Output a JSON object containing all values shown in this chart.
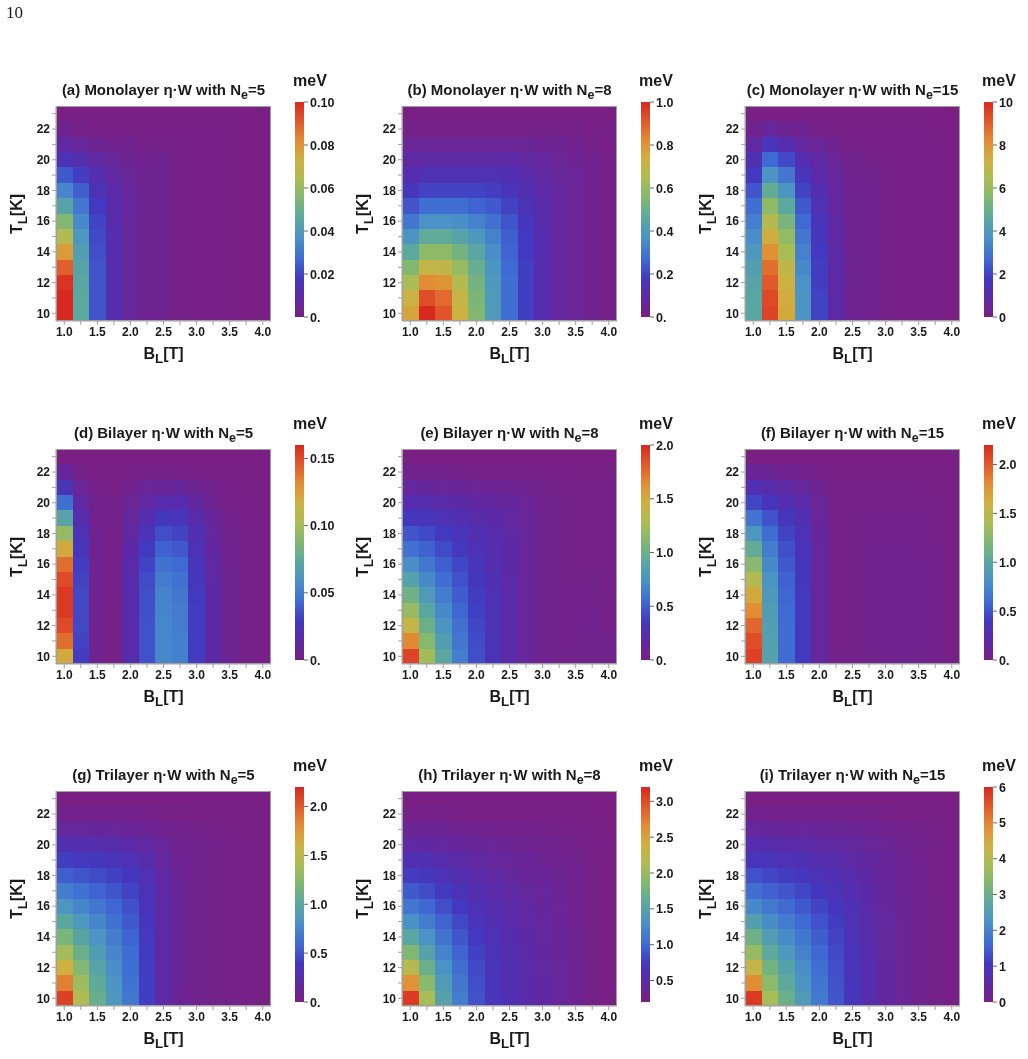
{
  "chart_data": [
    {
      "type": "heatmap",
      "title": "(a) Monolayer η·W with N$_{e}$=5",
      "xlabel": "B$_{L}$[T]",
      "ylabel": "T$_{L}$[K]",
      "clabel": "meV",
      "annotations": [
        "10"
      ],
      "categories": [
        "1.0",
        null,
        "1.5",
        null,
        "2.0",
        null,
        "2.5",
        null,
        "3.0",
        null,
        "3.5",
        null,
        "4.0"
      ],
      "y_categories": [
        null,
        "22",
        null,
        "20",
        null,
        "18",
        null,
        "16",
        null,
        "14",
        null,
        "12",
        null,
        "10"
      ],
      "clim": [
        0,
        0.1
      ],
      "cticks": [
        {
          "value": 0,
          "label": "0."
        },
        0.02,
        0.04,
        0.06,
        0.08,
        {
          "value": 0.1,
          "label": "0.10"
        }
      ],
      "cells": [
        [
          0,
          0,
          0,
          0,
          0,
          0,
          0,
          0,
          0,
          0,
          0,
          0,
          0
        ],
        [
          0.003,
          0.002,
          0.001,
          0.001,
          0.001,
          0.001,
          0.001,
          0.001,
          0.001,
          0.001,
          0.001,
          0,
          0
        ],
        [
          0.008,
          0.006,
          0.004,
          0.003,
          0.003,
          0.002,
          0.002,
          0.002,
          0.001,
          0.001,
          0.001,
          0,
          0
        ],
        [
          0.015,
          0.012,
          0.008,
          0.006,
          0.004,
          0.003,
          0.003,
          0.002,
          0.001,
          0.001,
          0.001,
          0,
          0
        ],
        [
          0.024,
          0.019,
          0.012,
          0.008,
          0.005,
          0.004,
          0.003,
          0.002,
          0.001,
          0.001,
          0.001,
          0,
          0
        ],
        [
          0.034,
          0.025,
          0.015,
          0.01,
          0.006,
          0.004,
          0.003,
          0.002,
          0.001,
          0.001,
          0.001,
          0,
          0
        ],
        [
          0.044,
          0.03,
          0.018,
          0.011,
          0.006,
          0.004,
          0.003,
          0.002,
          0.001,
          0.001,
          0.001,
          0,
          0
        ],
        [
          0.055,
          0.035,
          0.02,
          0.011,
          0.006,
          0.004,
          0.003,
          0.002,
          0.001,
          0.001,
          0.001,
          0,
          0
        ],
        [
          0.066,
          0.039,
          0.021,
          0.012,
          0.006,
          0.004,
          0.003,
          0.002,
          0.001,
          0.001,
          0.001,
          0,
          0
        ],
        [
          0.078,
          0.042,
          0.022,
          0.012,
          0.006,
          0.004,
          0.003,
          0.002,
          0.001,
          0.001,
          0.001,
          0,
          0
        ],
        [
          0.09,
          0.044,
          0.023,
          0.012,
          0.006,
          0.004,
          0.003,
          0.002,
          0.001,
          0.001,
          0.001,
          0,
          0
        ],
        [
          0.098,
          0.045,
          0.023,
          0.012,
          0.006,
          0.004,
          0.003,
          0.002,
          0.001,
          0.001,
          0.001,
          0,
          0
        ],
        [
          0.1,
          0.046,
          0.023,
          0.012,
          0.006,
          0.004,
          0.003,
          0.002,
          0.001,
          0.001,
          0.001,
          0,
          0
        ],
        [
          0.1,
          0.046,
          0.023,
          0.012,
          0.006,
          0.004,
          0.003,
          0.002,
          0.001,
          0.001,
          0.001,
          0,
          0
        ]
      ]
    },
    {
      "type": "heatmap",
      "title": "(b) Monolayer η·W with N$_{e}$=8",
      "xlabel": "B$_{L}$[T]",
      "ylabel": "T$_{L}$[K]",
      "clabel": "meV",
      "categories": [
        "1.0",
        null,
        "1.5",
        null,
        "2.0",
        null,
        "2.5",
        null,
        "3.0",
        null,
        "3.5",
        null,
        "4.0"
      ],
      "y_categories": [
        null,
        "22",
        null,
        "20",
        null,
        "18",
        null,
        "16",
        null,
        "14",
        null,
        "12",
        null,
        "10"
      ],
      "clim": [
        0,
        1
      ],
      "cticks": [
        {
          "value": 0,
          "label": "0."
        },
        0.2,
        0.4,
        0.6,
        0.8,
        {
          "value": 1,
          "label": "1.0"
        }
      ],
      "cells": [
        [
          0,
          0,
          0,
          0,
          0,
          0,
          0,
          0,
          0,
          0,
          0,
          0,
          0
        ],
        [
          0.02,
          0.02,
          0.02,
          0.02,
          0.02,
          0.02,
          0.02,
          0.02,
          0.02,
          0.02,
          0.02,
          0.01,
          0.01
        ],
        [
          0.05,
          0.05,
          0.05,
          0.05,
          0.05,
          0.05,
          0.05,
          0.05,
          0.04,
          0.04,
          0.03,
          0.02,
          0.01
        ],
        [
          0.08,
          0.09,
          0.09,
          0.09,
          0.09,
          0.09,
          0.09,
          0.08,
          0.07,
          0.05,
          0.04,
          0.03,
          0.02
        ],
        [
          0.12,
          0.14,
          0.14,
          0.14,
          0.14,
          0.14,
          0.13,
          0.11,
          0.08,
          0.06,
          0.05,
          0.03,
          0.02
        ],
        [
          0.17,
          0.2,
          0.2,
          0.2,
          0.2,
          0.19,
          0.16,
          0.13,
          0.1,
          0.07,
          0.05,
          0.03,
          0.02
        ],
        [
          0.23,
          0.28,
          0.28,
          0.28,
          0.26,
          0.24,
          0.2,
          0.15,
          0.11,
          0.07,
          0.05,
          0.03,
          0.02
        ],
        [
          0.3,
          0.37,
          0.37,
          0.36,
          0.33,
          0.29,
          0.23,
          0.17,
          0.11,
          0.07,
          0.05,
          0.03,
          0.02
        ],
        [
          0.38,
          0.47,
          0.47,
          0.44,
          0.39,
          0.33,
          0.25,
          0.18,
          0.12,
          0.07,
          0.05,
          0.03,
          0.02
        ],
        [
          0.46,
          0.58,
          0.58,
          0.52,
          0.45,
          0.36,
          0.26,
          0.18,
          0.12,
          0.07,
          0.05,
          0.03,
          0.02
        ],
        [
          0.55,
          0.7,
          0.69,
          0.6,
          0.49,
          0.38,
          0.27,
          0.19,
          0.12,
          0.07,
          0.05,
          0.03,
          0.02
        ],
        [
          0.64,
          0.82,
          0.8,
          0.66,
          0.52,
          0.39,
          0.28,
          0.19,
          0.12,
          0.07,
          0.05,
          0.03,
          0.02
        ],
        [
          0.72,
          0.93,
          0.88,
          0.7,
          0.54,
          0.4,
          0.28,
          0.19,
          0.12,
          0.07,
          0.05,
          0.03,
          0.02
        ],
        [
          0.76,
          1.0,
          0.92,
          0.72,
          0.55,
          0.4,
          0.28,
          0.19,
          0.12,
          0.07,
          0.05,
          0.03,
          0.02
        ]
      ]
    },
    {
      "type": "heatmap",
      "title": "(c) Monolayer η·W with N$_{e}$=15",
      "xlabel": "B$_{L}$[T]",
      "ylabel": "T$_{L}$[K]",
      "clabel": "meV",
      "categories": [
        "1.0",
        null,
        "1.5",
        null,
        "2.0",
        null,
        "2.5",
        null,
        "3.0",
        null,
        "3.5",
        null,
        "4.0"
      ],
      "y_categories": [
        null,
        "22",
        null,
        "20",
        null,
        "18",
        null,
        "16",
        null,
        "14",
        null,
        "12",
        null,
        "10"
      ],
      "clim": [
        0,
        10
      ],
      "cticks": [
        0,
        2,
        4,
        6,
        8,
        10
      ],
      "cells": [
        [
          0,
          0,
          0,
          0,
          0,
          0,
          0,
          0,
          0,
          0,
          0,
          0,
          0
        ],
        [
          0.3,
          0.6,
          0.4,
          0.3,
          0.2,
          0.1,
          0.1,
          0.1,
          0.1,
          0.1,
          0.1,
          0,
          0
        ],
        [
          0.8,
          1.6,
          1.2,
          0.7,
          0.5,
          0.3,
          0.2,
          0.1,
          0.1,
          0.1,
          0.1,
          0.1,
          0
        ],
        [
          1.3,
          2.7,
          2.1,
          1.2,
          0.8,
          0.5,
          0.3,
          0.2,
          0.2,
          0.1,
          0.1,
          0.1,
          0
        ],
        [
          1.8,
          3.8,
          3.0,
          1.6,
          1.0,
          0.6,
          0.3,
          0.3,
          0.2,
          0.1,
          0.1,
          0.1,
          0
        ],
        [
          2.3,
          4.8,
          3.8,
          2.0,
          1.2,
          0.7,
          0.4,
          0.3,
          0.2,
          0.1,
          0.1,
          0.1,
          0
        ],
        [
          2.8,
          5.8,
          4.6,
          2.4,
          1.4,
          0.7,
          0.4,
          0.3,
          0.2,
          0.1,
          0.1,
          0.1,
          0
        ],
        [
          3.2,
          6.6,
          5.3,
          2.7,
          1.6,
          0.8,
          0.4,
          0.3,
          0.2,
          0.1,
          0.1,
          0.1,
          0
        ],
        [
          3.6,
          7.4,
          5.9,
          3.0,
          1.7,
          0.8,
          0.4,
          0.3,
          0.2,
          0.1,
          0.1,
          0.1,
          0
        ],
        [
          3.9,
          8.1,
          6.4,
          3.3,
          1.8,
          0.9,
          0.4,
          0.3,
          0.2,
          0.1,
          0.1,
          0.1,
          0
        ],
        [
          4.2,
          8.7,
          6.9,
          3.5,
          1.9,
          0.9,
          0.4,
          0.3,
          0.2,
          0.1,
          0.1,
          0.1,
          0
        ],
        [
          4.4,
          9.1,
          7.2,
          3.7,
          1.9,
          0.9,
          0.4,
          0.3,
          0.2,
          0.1,
          0.1,
          0.1,
          0
        ],
        [
          4.5,
          9.4,
          7.4,
          3.8,
          2.0,
          0.9,
          0.4,
          0.3,
          0.2,
          0.1,
          0.1,
          0.1,
          0
        ],
        [
          4.5,
          9.5,
          7.5,
          3.8,
          2.0,
          0.9,
          0.4,
          0.3,
          0.2,
          0.1,
          0.1,
          0.1,
          0
        ]
      ]
    },
    {
      "type": "heatmap",
      "title": "(d) Bilayer η·W with N$_{e}$=5",
      "xlabel": "B$_{L}$[T]",
      "ylabel": "T$_{L}$[K]",
      "clabel": "meV",
      "categories": [
        "1.0",
        null,
        "1.5",
        null,
        "2.0",
        null,
        "2.5",
        null,
        "3.0",
        null,
        "3.5",
        null,
        "4.0"
      ],
      "y_categories": [
        null,
        "22",
        null,
        "20",
        null,
        "18",
        null,
        "16",
        null,
        "14",
        null,
        "12",
        null,
        "10"
      ],
      "clim": [
        0,
        0.16
      ],
      "cticks": [
        {
          "value": 0,
          "label": "0."
        },
        0.05,
        {
          "value": 0.1,
          "label": "0.10"
        },
        0.15
      ],
      "cells": [
        [
          0,
          0,
          0,
          0,
          0,
          0,
          0,
          0,
          0,
          0,
          0,
          0,
          0
        ],
        [
          0.01,
          0.003,
          0.001,
          0.001,
          0.002,
          0.003,
          0.003,
          0.003,
          0.002,
          0.001,
          0.001,
          0.001,
          0
        ],
        [
          0.025,
          0.008,
          0.003,
          0.002,
          0.005,
          0.008,
          0.01,
          0.01,
          0.007,
          0.004,
          0.002,
          0.001,
          0.001
        ],
        [
          0.045,
          0.014,
          0.004,
          0.003,
          0.008,
          0.014,
          0.019,
          0.018,
          0.012,
          0.006,
          0.003,
          0.002,
          0.001
        ],
        [
          0.07,
          0.019,
          0.004,
          0.003,
          0.011,
          0.02,
          0.028,
          0.026,
          0.017,
          0.009,
          0.004,
          0.002,
          0.001
        ],
        [
          0.095,
          0.023,
          0.005,
          0.003,
          0.013,
          0.025,
          0.035,
          0.032,
          0.021,
          0.011,
          0.005,
          0.003,
          0.002
        ],
        [
          0.12,
          0.027,
          0.005,
          0.003,
          0.015,
          0.029,
          0.041,
          0.038,
          0.024,
          0.012,
          0.006,
          0.003,
          0.002
        ],
        [
          0.14,
          0.03,
          0.005,
          0.003,
          0.016,
          0.032,
          0.046,
          0.043,
          0.026,
          0.013,
          0.006,
          0.003,
          0.002
        ],
        [
          0.15,
          0.032,
          0.005,
          0.003,
          0.017,
          0.034,
          0.05,
          0.046,
          0.028,
          0.014,
          0.007,
          0.003,
          0.002
        ],
        [
          0.155,
          0.033,
          0.005,
          0.003,
          0.017,
          0.035,
          0.053,
          0.048,
          0.029,
          0.015,
          0.007,
          0.003,
          0.002
        ],
        [
          0.155,
          0.033,
          0.005,
          0.003,
          0.018,
          0.035,
          0.054,
          0.05,
          0.03,
          0.015,
          0.007,
          0.003,
          0.002
        ],
        [
          0.15,
          0.033,
          0.005,
          0.003,
          0.018,
          0.036,
          0.055,
          0.051,
          0.03,
          0.015,
          0.007,
          0.003,
          0.002
        ],
        [
          0.14,
          0.032,
          0.005,
          0.003,
          0.018,
          0.036,
          0.055,
          0.052,
          0.03,
          0.015,
          0.007,
          0.003,
          0.002
        ],
        [
          0.12,
          0.03,
          0.005,
          0.003,
          0.018,
          0.036,
          0.055,
          0.052,
          0.03,
          0.015,
          0.007,
          0.003,
          0.002
        ]
      ]
    },
    {
      "type": "heatmap",
      "title": "(e) Bilayer η·W with N$_{e}$=8",
      "xlabel": "B$_{L}$[T]",
      "ylabel": "T$_{L}$[K]",
      "clabel": "meV",
      "categories": [
        "1.0",
        null,
        "1.5",
        null,
        "2.0",
        null,
        "2.5",
        null,
        "3.0",
        null,
        "3.5",
        null,
        "4.0"
      ],
      "y_categories": [
        null,
        "22",
        null,
        "20",
        null,
        "18",
        null,
        "16",
        null,
        "14",
        null,
        "12",
        null,
        "10"
      ],
      "clim": [
        0,
        2
      ],
      "cticks": [
        {
          "value": 0,
          "label": "0."
        },
        0.5,
        {
          "value": 1,
          "label": "1.0"
        },
        1.5,
        {
          "value": 2,
          "label": "2.0"
        }
      ],
      "cells": [
        [
          0,
          0,
          0,
          0,
          0,
          0,
          0,
          0,
          0,
          0,
          0,
          0,
          0
        ],
        [
          0.06,
          0.05,
          0.05,
          0.04,
          0.04,
          0.03,
          0.03,
          0.03,
          0.02,
          0.02,
          0.02,
          0.01,
          0.01
        ],
        [
          0.14,
          0.13,
          0.12,
          0.11,
          0.1,
          0.09,
          0.08,
          0.07,
          0.05,
          0.04,
          0.03,
          0.03,
          0.02
        ],
        [
          0.24,
          0.23,
          0.21,
          0.19,
          0.17,
          0.15,
          0.13,
          0.1,
          0.07,
          0.05,
          0.04,
          0.03,
          0.02
        ],
        [
          0.35,
          0.33,
          0.29,
          0.26,
          0.22,
          0.19,
          0.16,
          0.12,
          0.07,
          0.05,
          0.04,
          0.03,
          0.03
        ],
        [
          0.46,
          0.42,
          0.36,
          0.31,
          0.26,
          0.22,
          0.18,
          0.12,
          0.07,
          0.05,
          0.04,
          0.04,
          0.03
        ],
        [
          0.58,
          0.51,
          0.43,
          0.36,
          0.29,
          0.24,
          0.19,
          0.12,
          0.07,
          0.05,
          0.04,
          0.04,
          0.03
        ],
        [
          0.72,
          0.6,
          0.5,
          0.41,
          0.32,
          0.25,
          0.19,
          0.12,
          0.07,
          0.05,
          0.04,
          0.04,
          0.03
        ],
        [
          0.86,
          0.7,
          0.56,
          0.45,
          0.35,
          0.27,
          0.2,
          0.12,
          0.07,
          0.05,
          0.04,
          0.05,
          0.03
        ],
        [
          1.02,
          0.8,
          0.63,
          0.49,
          0.37,
          0.28,
          0.2,
          0.12,
          0.07,
          0.05,
          0.05,
          0.05,
          0.04
        ],
        [
          1.2,
          0.9,
          0.7,
          0.53,
          0.39,
          0.29,
          0.2,
          0.12,
          0.07,
          0.05,
          0.05,
          0.05,
          0.04
        ],
        [
          1.4,
          1.0,
          0.76,
          0.57,
          0.41,
          0.29,
          0.2,
          0.12,
          0.07,
          0.05,
          0.05,
          0.06,
          0.04
        ],
        [
          1.65,
          1.12,
          0.83,
          0.6,
          0.43,
          0.3,
          0.2,
          0.12,
          0.07,
          0.05,
          0.05,
          0.06,
          0.05
        ],
        [
          1.9,
          1.25,
          0.9,
          0.64,
          0.44,
          0.3,
          0.2,
          0.12,
          0.07,
          0.05,
          0.05,
          0.06,
          0.05
        ]
      ]
    },
    {
      "type": "heatmap",
      "title": "(f) Bilayer η·W with N$_{e}$=15",
      "xlabel": "B$_{L}$[T]",
      "ylabel": "T$_{L}$[K]",
      "clabel": "meV",
      "categories": [
        "1.0",
        null,
        "1.5",
        null,
        "2.0",
        null,
        "2.5",
        null,
        "3.0",
        null,
        "3.5",
        null,
        "4.0"
      ],
      "y_categories": [
        null,
        "22",
        null,
        "20",
        null,
        "18",
        null,
        "16",
        null,
        "14",
        null,
        "12",
        null,
        "10"
      ],
      "clim": [
        0,
        2.2
      ],
      "cticks": [
        {
          "value": 0,
          "label": "0."
        },
        0.5,
        {
          "value": 1,
          "label": "1.0"
        },
        1.5,
        {
          "value": 2,
          "label": "2.0"
        }
      ],
      "cells": [
        [
          0,
          0,
          0,
          0,
          0,
          0,
          0,
          0,
          0,
          0,
          0,
          0,
          0
        ],
        [
          0.12,
          0.1,
          0.08,
          0.06,
          0.04,
          0.02,
          0.01,
          0.01,
          0.01,
          0.01,
          0.01,
          0.01,
          0.01
        ],
        [
          0.28,
          0.24,
          0.19,
          0.15,
          0.08,
          0.03,
          0.03,
          0.03,
          0.03,
          0.03,
          0.03,
          0.02,
          0.01
        ],
        [
          0.45,
          0.37,
          0.28,
          0.22,
          0.11,
          0.04,
          0.03,
          0.04,
          0.04,
          0.04,
          0.04,
          0.03,
          0.02
        ],
        [
          0.65,
          0.5,
          0.37,
          0.28,
          0.13,
          0.04,
          0.04,
          0.05,
          0.05,
          0.05,
          0.05,
          0.04,
          0.02
        ],
        [
          0.85,
          0.61,
          0.44,
          0.32,
          0.14,
          0.04,
          0.04,
          0.05,
          0.06,
          0.06,
          0.06,
          0.04,
          0.02
        ],
        [
          1.05,
          0.7,
          0.49,
          0.35,
          0.15,
          0.04,
          0.04,
          0.06,
          0.07,
          0.07,
          0.06,
          0.05,
          0.02
        ],
        [
          1.25,
          0.77,
          0.53,
          0.37,
          0.15,
          0.04,
          0.04,
          0.06,
          0.07,
          0.08,
          0.07,
          0.05,
          0.02
        ],
        [
          1.45,
          0.83,
          0.56,
          0.38,
          0.15,
          0.04,
          0.04,
          0.06,
          0.07,
          0.08,
          0.07,
          0.05,
          0.02
        ],
        [
          1.65,
          0.87,
          0.58,
          0.39,
          0.15,
          0.04,
          0.04,
          0.06,
          0.07,
          0.08,
          0.07,
          0.05,
          0.02
        ],
        [
          1.8,
          0.9,
          0.59,
          0.4,
          0.15,
          0.04,
          0.04,
          0.06,
          0.07,
          0.08,
          0.07,
          0.05,
          0.02
        ],
        [
          1.95,
          0.92,
          0.6,
          0.4,
          0.15,
          0.04,
          0.04,
          0.06,
          0.07,
          0.08,
          0.07,
          0.05,
          0.02
        ],
        [
          2.05,
          0.94,
          0.6,
          0.4,
          0.15,
          0.04,
          0.04,
          0.06,
          0.07,
          0.08,
          0.07,
          0.05,
          0.02
        ],
        [
          2.1,
          0.95,
          0.6,
          0.4,
          0.15,
          0.04,
          0.04,
          0.06,
          0.07,
          0.08,
          0.07,
          0.05,
          0.02
        ]
      ]
    },
    {
      "type": "heatmap",
      "title": "(g) Trilayer η·W with N$_{e}$=5",
      "xlabel": "B$_{L}$[T]",
      "ylabel": "T$_{L}$[K]",
      "clabel": "meV",
      "categories": [
        "1.0",
        null,
        "1.5",
        null,
        "2.0",
        null,
        "2.5",
        null,
        "3.0",
        null,
        "3.5",
        null,
        "4.0"
      ],
      "y_categories": [
        null,
        "22",
        null,
        "20",
        null,
        "18",
        null,
        "16",
        null,
        "14",
        null,
        "12",
        null,
        "10"
      ],
      "clim": [
        0,
        2.2
      ],
      "cticks": [
        {
          "value": 0,
          "label": "0."
        },
        0.5,
        {
          "value": 1,
          "label": "1.0"
        },
        1.5,
        {
          "value": 2,
          "label": "2.0"
        }
      ],
      "cells": [
        [
          0,
          0,
          0,
          0,
          0,
          0,
          0,
          0,
          0,
          0,
          0,
          0,
          0
        ],
        [
          0.06,
          0.06,
          0.05,
          0.05,
          0.05,
          0.04,
          0.03,
          0.03,
          0.02,
          0.02,
          0.02,
          0.01,
          0.01
        ],
        [
          0.15,
          0.15,
          0.14,
          0.13,
          0.12,
          0.1,
          0.08,
          0.06,
          0.05,
          0.04,
          0.03,
          0.02,
          0.02
        ],
        [
          0.28,
          0.27,
          0.26,
          0.24,
          0.22,
          0.18,
          0.13,
          0.08,
          0.06,
          0.05,
          0.04,
          0.03,
          0.02
        ],
        [
          0.42,
          0.39,
          0.37,
          0.34,
          0.31,
          0.25,
          0.16,
          0.09,
          0.07,
          0.05,
          0.04,
          0.03,
          0.02
        ],
        [
          0.55,
          0.51,
          0.47,
          0.43,
          0.38,
          0.29,
          0.18,
          0.1,
          0.07,
          0.05,
          0.04,
          0.03,
          0.02
        ],
        [
          0.7,
          0.63,
          0.57,
          0.51,
          0.44,
          0.33,
          0.19,
          0.1,
          0.07,
          0.05,
          0.04,
          0.03,
          0.02
        ],
        [
          0.85,
          0.75,
          0.66,
          0.58,
          0.49,
          0.35,
          0.2,
          0.1,
          0.07,
          0.05,
          0.04,
          0.03,
          0.02
        ],
        [
          1.0,
          0.86,
          0.75,
          0.64,
          0.53,
          0.37,
          0.2,
          0.1,
          0.07,
          0.05,
          0.04,
          0.03,
          0.02
        ],
        [
          1.18,
          0.98,
          0.83,
          0.7,
          0.57,
          0.39,
          0.2,
          0.1,
          0.07,
          0.05,
          0.04,
          0.03,
          0.02
        ],
        [
          1.38,
          1.1,
          0.9,
          0.75,
          0.6,
          0.4,
          0.2,
          0.1,
          0.07,
          0.05,
          0.04,
          0.03,
          0.02
        ],
        [
          1.6,
          1.22,
          0.97,
          0.79,
          0.62,
          0.41,
          0.2,
          0.1,
          0.07,
          0.05,
          0.04,
          0.03,
          0.02
        ],
        [
          1.85,
          1.35,
          1.03,
          0.83,
          0.64,
          0.42,
          0.2,
          0.1,
          0.07,
          0.05,
          0.04,
          0.03,
          0.02
        ],
        [
          2.1,
          1.45,
          1.08,
          0.86,
          0.66,
          0.42,
          0.2,
          0.1,
          0.07,
          0.05,
          0.04,
          0.03,
          0.02
        ]
      ]
    },
    {
      "type": "heatmap",
      "title": "(h) Trilayer η·W with N$_{e}$=8",
      "xlabel": "B$_{L}$[T]",
      "ylabel": "T$_{L}$[K]",
      "clabel": "meV",
      "categories": [
        "1.0",
        null,
        "1.5",
        null,
        "2.0",
        null,
        "2.5",
        null,
        "3.0",
        null,
        "3.5",
        null,
        "4.0"
      ],
      "y_categories": [
        null,
        "22",
        null,
        "20",
        null,
        "18",
        null,
        "16",
        null,
        "14",
        null,
        "12",
        null,
        "10"
      ],
      "clim": [
        0.2,
        3.2
      ],
      "cticks": [
        0.5,
        {
          "value": 1,
          "label": "1.0"
        },
        1.5,
        {
          "value": 2,
          "label": "2.0"
        },
        2.5,
        {
          "value": 3,
          "label": "3.0"
        }
      ],
      "cells": [
        [
          0.2,
          0.2,
          0.2,
          0.2,
          0.2,
          0.2,
          0.2,
          0.2,
          0.2,
          0.2,
          0.2,
          0.2,
          0.2
        ],
        [
          0.25,
          0.25,
          0.25,
          0.24,
          0.24,
          0.24,
          0.24,
          0.24,
          0.23,
          0.23,
          0.23,
          0.22,
          0.21
        ],
        [
          0.34,
          0.34,
          0.33,
          0.32,
          0.3,
          0.29,
          0.28,
          0.28,
          0.27,
          0.26,
          0.25,
          0.24,
          0.21
        ],
        [
          0.46,
          0.45,
          0.42,
          0.4,
          0.37,
          0.35,
          0.33,
          0.32,
          0.3,
          0.29,
          0.27,
          0.25,
          0.22
        ],
        [
          0.6,
          0.58,
          0.53,
          0.49,
          0.44,
          0.41,
          0.38,
          0.36,
          0.33,
          0.31,
          0.28,
          0.25,
          0.22
        ],
        [
          0.76,
          0.71,
          0.64,
          0.57,
          0.51,
          0.46,
          0.42,
          0.39,
          0.36,
          0.33,
          0.29,
          0.26,
          0.22
        ],
        [
          0.92,
          0.85,
          0.75,
          0.66,
          0.57,
          0.51,
          0.46,
          0.42,
          0.38,
          0.34,
          0.3,
          0.26,
          0.22
        ],
        [
          1.1,
          1.0,
          0.86,
          0.74,
          0.63,
          0.55,
          0.49,
          0.44,
          0.4,
          0.35,
          0.31,
          0.26,
          0.22
        ],
        [
          1.3,
          1.15,
          0.97,
          0.82,
          0.69,
          0.59,
          0.52,
          0.46,
          0.41,
          0.36,
          0.31,
          0.26,
          0.22
        ],
        [
          1.55,
          1.32,
          1.08,
          0.9,
          0.74,
          0.62,
          0.54,
          0.48,
          0.42,
          0.37,
          0.32,
          0.26,
          0.22
        ],
        [
          1.85,
          1.5,
          1.2,
          0.98,
          0.79,
          0.65,
          0.56,
          0.5,
          0.43,
          0.37,
          0.32,
          0.26,
          0.22
        ],
        [
          2.2,
          1.7,
          1.32,
          1.05,
          0.83,
          0.67,
          0.58,
          0.51,
          0.44,
          0.38,
          0.32,
          0.26,
          0.22
        ],
        [
          2.6,
          1.9,
          1.42,
          1.1,
          0.86,
          0.69,
          0.59,
          0.52,
          0.45,
          0.38,
          0.32,
          0.26,
          0.22
        ],
        [
          3.1,
          2.1,
          1.5,
          1.15,
          0.88,
          0.7,
          0.6,
          0.52,
          0.45,
          0.38,
          0.32,
          0.26,
          0.22
        ]
      ]
    },
    {
      "type": "heatmap",
      "title": "(i) Trilayer η·W with N$_{e}$=15",
      "xlabel": "B$_{L}$[T]",
      "ylabel": "T$_{L}$[K]",
      "clabel": "meV",
      "categories": [
        "1.0",
        null,
        "1.5",
        null,
        "2.0",
        null,
        "2.5",
        null,
        "3.0",
        null,
        "3.5",
        null,
        "4.0"
      ],
      "y_categories": [
        null,
        "22",
        null,
        "20",
        null,
        "18",
        null,
        "16",
        null,
        "14",
        null,
        "12",
        null,
        "10"
      ],
      "clim": [
        0,
        6
      ],
      "cticks": [
        0,
        1,
        2,
        3,
        4,
        5,
        6
      ],
      "cells": [
        [
          0,
          0,
          0,
          0,
          0,
          0,
          0,
          0,
          0,
          0,
          0,
          0,
          0
        ],
        [
          0.18,
          0.17,
          0.16,
          0.16,
          0.15,
          0.14,
          0.13,
          0.12,
          0.1,
          0.08,
          0.06,
          0.05,
          0.03
        ],
        [
          0.42,
          0.4,
          0.38,
          0.36,
          0.34,
          0.31,
          0.28,
          0.25,
          0.21,
          0.17,
          0.13,
          0.09,
          0.05
        ],
        [
          0.7,
          0.66,
          0.62,
          0.58,
          0.53,
          0.48,
          0.43,
          0.36,
          0.3,
          0.23,
          0.17,
          0.11,
          0.06
        ],
        [
          1.0,
          0.93,
          0.87,
          0.8,
          0.72,
          0.64,
          0.55,
          0.45,
          0.35,
          0.26,
          0.18,
          0.11,
          0.06
        ],
        [
          1.35,
          1.22,
          1.12,
          1.02,
          0.9,
          0.78,
          0.65,
          0.51,
          0.38,
          0.27,
          0.19,
          0.12,
          0.06
        ],
        [
          1.7,
          1.52,
          1.38,
          1.23,
          1.06,
          0.9,
          0.73,
          0.56,
          0.4,
          0.28,
          0.19,
          0.12,
          0.06
        ],
        [
          2.1,
          1.83,
          1.63,
          1.43,
          1.21,
          1.01,
          0.8,
          0.6,
          0.42,
          0.29,
          0.2,
          0.12,
          0.06
        ],
        [
          2.55,
          2.15,
          1.88,
          1.62,
          1.35,
          1.11,
          0.86,
          0.63,
          0.43,
          0.3,
          0.2,
          0.12,
          0.06
        ],
        [
          3.05,
          2.48,
          2.12,
          1.81,
          1.48,
          1.19,
          0.91,
          0.66,
          0.44,
          0.3,
          0.2,
          0.12,
          0.06
        ],
        [
          3.6,
          2.8,
          2.35,
          1.98,
          1.6,
          1.26,
          0.95,
          0.68,
          0.44,
          0.3,
          0.2,
          0.12,
          0.06
        ],
        [
          4.2,
          3.12,
          2.58,
          2.14,
          1.7,
          1.32,
          0.98,
          0.69,
          0.45,
          0.3,
          0.2,
          0.12,
          0.06
        ],
        [
          4.9,
          3.45,
          2.8,
          2.28,
          1.78,
          1.36,
          1.0,
          0.7,
          0.45,
          0.3,
          0.2,
          0.12,
          0.06
        ],
        [
          5.8,
          3.8,
          3.0,
          2.4,
          1.85,
          1.4,
          1.02,
          0.7,
          0.45,
          0.3,
          0.2,
          0.12,
          0.06
        ]
      ]
    }
  ]
}
